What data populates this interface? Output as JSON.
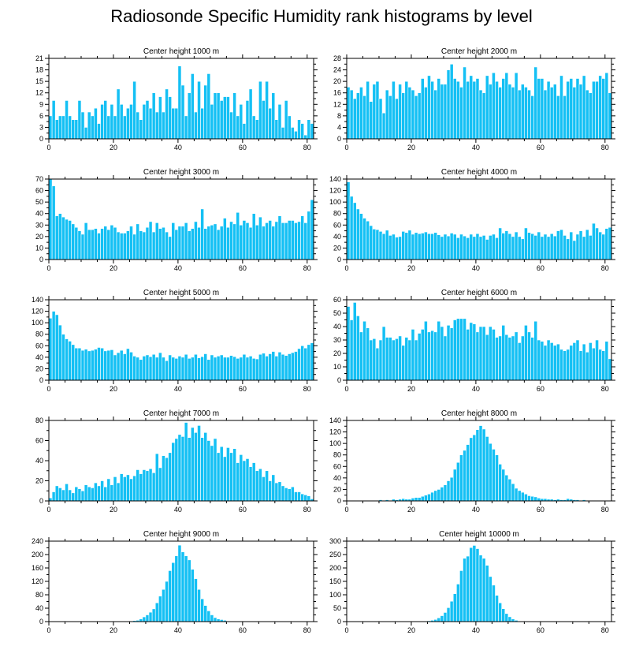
{
  "title": "Radiosonde Specific Humidity rank histograms by level",
  "colors": {
    "bar": "#14c0f4",
    "bar_edge": "#ffffff",
    "axis": "#000000",
    "background": "#ffffff"
  },
  "chart_data": [
    {
      "type": "bar",
      "title": "Center height 1000 m",
      "xlim": [
        0,
        82
      ],
      "ylim": [
        0,
        21
      ],
      "xticks": [
        0,
        20,
        40,
        60,
        80
      ],
      "yticks": [
        0,
        3,
        6,
        9,
        12,
        15,
        18,
        21
      ],
      "values": [
        6,
        10,
        5,
        6,
        6,
        10,
        6,
        5,
        5,
        10,
        7,
        3,
        7,
        6,
        8,
        4,
        9,
        10,
        6,
        9,
        6,
        13,
        9,
        6,
        8,
        9,
        15,
        7,
        5,
        9,
        10,
        8,
        12,
        7,
        11,
        7,
        13,
        11,
        8,
        8,
        19,
        14,
        6,
        12,
        17,
        7,
        15,
        8,
        14,
        17,
        9,
        12,
        12,
        10,
        11,
        11,
        7,
        12,
        6,
        9,
        4,
        10,
        13,
        6,
        5,
        15,
        10,
        15,
        8,
        12,
        5,
        9,
        3,
        10,
        6,
        3,
        2,
        5,
        4,
        1,
        5,
        4
      ]
    },
    {
      "type": "bar",
      "title": "Center height 2000 m",
      "xlim": [
        0,
        82
      ],
      "ylim": [
        0,
        28
      ],
      "xticks": [
        0,
        20,
        40,
        60,
        80
      ],
      "yticks": [
        0,
        4,
        8,
        12,
        16,
        20,
        24,
        28
      ],
      "values": [
        18,
        17,
        14,
        16,
        18,
        15,
        20,
        13,
        19,
        20,
        14,
        9,
        17,
        15,
        20,
        14,
        19,
        16,
        20,
        18,
        17,
        15,
        16,
        21,
        18,
        22,
        20,
        17,
        21,
        19,
        19,
        24,
        26,
        21,
        20,
        18,
        25,
        20,
        22,
        20,
        21,
        17,
        16,
        22,
        19,
        23,
        20,
        18,
        21,
        23,
        19,
        18,
        23,
        17,
        19,
        18,
        17,
        15,
        25,
        21,
        21,
        17,
        20,
        18,
        19,
        15,
        22,
        15,
        20,
        21,
        18,
        21,
        19,
        22,
        17,
        16,
        20,
        20,
        22,
        21,
        23,
        16
      ]
    },
    {
      "type": "bar",
      "title": "Center height 3000 m",
      "xlim": [
        0,
        82
      ],
      "ylim": [
        0,
        70
      ],
      "xticks": [
        0,
        20,
        40,
        60,
        80
      ],
      "yticks": [
        0,
        10,
        20,
        30,
        40,
        50,
        60,
        70
      ],
      "values": [
        70,
        64,
        38,
        40,
        37,
        35,
        34,
        31,
        28,
        25,
        22,
        32,
        26,
        26,
        27,
        23,
        27,
        29,
        26,
        30,
        28,
        24,
        23,
        23,
        25,
        29,
        22,
        31,
        25,
        24,
        28,
        33,
        24,
        32,
        27,
        28,
        24,
        20,
        32,
        26,
        29,
        29,
        32,
        25,
        27,
        33,
        28,
        44,
        27,
        29,
        30,
        31,
        26,
        29,
        36,
        28,
        33,
        31,
        41,
        30,
        34,
        32,
        28,
        40,
        30,
        37,
        29,
        32,
        34,
        29,
        33,
        38,
        32,
        32,
        34,
        34,
        32,
        33,
        38,
        32,
        42,
        52
      ]
    },
    {
      "type": "bar",
      "title": "Center height 4000 m",
      "xlim": [
        0,
        82
      ],
      "ylim": [
        0,
        140
      ],
      "xticks": [
        0,
        20,
        40,
        60,
        80
      ],
      "yticks": [
        0,
        20,
        40,
        60,
        80,
        100,
        120,
        140
      ],
      "values": [
        135,
        110,
        99,
        88,
        80,
        72,
        67,
        59,
        53,
        52,
        49,
        45,
        51,
        42,
        44,
        39,
        40,
        49,
        47,
        51,
        44,
        47,
        45,
        46,
        48,
        45,
        45,
        47,
        43,
        40,
        44,
        41,
        46,
        44,
        38,
        44,
        41,
        38,
        44,
        40,
        45,
        40,
        42,
        35,
        42,
        44,
        38,
        55,
        46,
        50,
        45,
        40,
        48,
        40,
        36,
        55,
        47,
        45,
        42,
        48,
        40,
        44,
        40,
        45,
        41,
        50,
        52,
        42,
        36,
        48,
        33,
        44,
        50,
        40,
        52,
        42,
        63,
        55,
        48,
        44,
        54,
        56
      ]
    },
    {
      "type": "bar",
      "title": "Center height 5000 m",
      "xlim": [
        0,
        82
      ],
      "ylim": [
        0,
        140
      ],
      "xticks": [
        0,
        20,
        40,
        60,
        80
      ],
      "yticks": [
        0,
        20,
        40,
        60,
        80,
        100,
        120,
        140
      ],
      "values": [
        108,
        120,
        114,
        96,
        80,
        72,
        68,
        62,
        56,
        56,
        52,
        54,
        51,
        52,
        54,
        57,
        56,
        51,
        52,
        53,
        44,
        48,
        52,
        46,
        55,
        49,
        42,
        40,
        36,
        42,
        44,
        41,
        45,
        40,
        48,
        40,
        34,
        44,
        40,
        38,
        42,
        40,
        45,
        38,
        40,
        45,
        39,
        41,
        46,
        36,
        44,
        40,
        42,
        44,
        40,
        40,
        43,
        41,
        38,
        40,
        45,
        40,
        42,
        38,
        37,
        45,
        47,
        42,
        46,
        50,
        42,
        49,
        45,
        43,
        46,
        48,
        50,
        55,
        60,
        56,
        62,
        65
      ]
    },
    {
      "type": "bar",
      "title": "Center height 6000 m",
      "xlim": [
        0,
        82
      ],
      "ylim": [
        0,
        60
      ],
      "xticks": [
        0,
        20,
        40,
        60,
        80
      ],
      "yticks": [
        0,
        10,
        20,
        30,
        40,
        50,
        60
      ],
      "values": [
        55,
        45,
        58,
        48,
        36,
        44,
        39,
        30,
        31,
        24,
        30,
        40,
        32,
        32,
        30,
        31,
        33,
        26,
        32,
        30,
        38,
        30,
        35,
        38,
        44,
        36,
        37,
        36,
        44,
        40,
        33,
        41,
        39,
        45,
        46,
        46,
        46,
        38,
        43,
        42,
        36,
        40,
        40,
        34,
        40,
        38,
        32,
        33,
        41,
        34,
        32,
        33,
        36,
        28,
        33,
        41,
        36,
        32,
        44,
        30,
        29,
        26,
        30,
        28,
        26,
        27,
        23,
        22,
        23,
        26,
        28,
        30,
        22,
        27,
        21,
        28,
        24,
        30,
        23,
        22,
        29,
        16
      ]
    },
    {
      "type": "bar",
      "title": "Center height 7000 m",
      "xlim": [
        0,
        82
      ],
      "ylim": [
        0,
        80
      ],
      "xticks": [
        0,
        20,
        40,
        60,
        80
      ],
      "yticks": [
        0,
        20,
        40,
        60,
        80
      ],
      "values": [
        3,
        9,
        15,
        13,
        11,
        17,
        11,
        8,
        14,
        12,
        10,
        16,
        14,
        13,
        18,
        15,
        20,
        14,
        22,
        16,
        24,
        18,
        27,
        24,
        26,
        22,
        25,
        31,
        27,
        31,
        30,
        32,
        28,
        47,
        33,
        45,
        43,
        48,
        58,
        62,
        66,
        64,
        78,
        63,
        73,
        68,
        75,
        63,
        68,
        60,
        55,
        62,
        48,
        54,
        44,
        53,
        48,
        52,
        38,
        46,
        40,
        42,
        34,
        38,
        30,
        32,
        24,
        30,
        20,
        26,
        18,
        19,
        15,
        13,
        12,
        14,
        9,
        9,
        7,
        6,
        5,
        2
      ]
    },
    {
      "type": "bar",
      "title": "Center height 8000 m",
      "xlim": [
        0,
        82
      ],
      "ylim": [
        0,
        140
      ],
      "xticks": [
        0,
        20,
        40,
        60,
        80
      ],
      "yticks": [
        0,
        20,
        40,
        60,
        80,
        100,
        120,
        140
      ],
      "values": [
        0,
        0,
        1,
        0,
        0,
        1,
        0,
        1,
        1,
        0,
        2,
        1,
        2,
        1,
        3,
        2,
        3,
        4,
        3,
        3,
        5,
        6,
        6,
        8,
        10,
        12,
        15,
        18,
        20,
        24,
        28,
        35,
        41,
        55,
        67,
        80,
        88,
        98,
        110,
        115,
        124,
        131,
        125,
        112,
        100,
        90,
        80,
        64,
        55,
        45,
        38,
        30,
        22,
        18,
        15,
        12,
        9,
        8,
        7,
        5,
        4,
        4,
        3,
        3,
        2,
        3,
        2,
        2,
        4,
        3,
        2,
        2,
        1,
        2,
        1,
        1,
        1,
        0,
        1,
        0,
        0,
        0
      ]
    },
    {
      "type": "bar",
      "title": "Center height 9000 m",
      "xlim": [
        0,
        82
      ],
      "ylim": [
        0,
        240
      ],
      "xticks": [
        0,
        20,
        40,
        60,
        80
      ],
      "yticks": [
        0,
        40,
        80,
        120,
        160,
        200,
        240
      ],
      "values": [
        0,
        0,
        0,
        0,
        0,
        0,
        0,
        0,
        0,
        0,
        0,
        0,
        0,
        0,
        0,
        0,
        0,
        0,
        0,
        0,
        0,
        0,
        0,
        1,
        1,
        2,
        3,
        4,
        8,
        14,
        20,
        28,
        38,
        56,
        76,
        96,
        120,
        152,
        176,
        196,
        228,
        208,
        196,
        184,
        156,
        128,
        96,
        68,
        48,
        32,
        20,
        12,
        8,
        6,
        4,
        2,
        1,
        1,
        0,
        0,
        0,
        0,
        0,
        0,
        0,
        0,
        0,
        0,
        0,
        0,
        0,
        0,
        0,
        0,
        0,
        0,
        0,
        0,
        0,
        0,
        0,
        0
      ]
    },
    {
      "type": "bar",
      "title": "Center height 10000 m",
      "xlim": [
        0,
        82
      ],
      "ylim": [
        0,
        300
      ],
      "xticks": [
        0,
        20,
        40,
        60,
        80
      ],
      "yticks": [
        0,
        50,
        100,
        150,
        200,
        250,
        300
      ],
      "values": [
        0,
        0,
        0,
        0,
        0,
        0,
        0,
        0,
        0,
        0,
        0,
        0,
        0,
        0,
        0,
        0,
        0,
        0,
        0,
        0,
        0,
        0,
        1,
        1,
        2,
        3,
        5,
        8,
        14,
        22,
        34,
        52,
        76,
        104,
        140,
        190,
        236,
        244,
        276,
        284,
        272,
        248,
        236,
        210,
        168,
        136,
        98,
        70,
        48,
        30,
        18,
        10,
        5,
        2,
        1,
        0,
        0,
        0,
        0,
        0,
        0,
        0,
        0,
        0,
        0,
        0,
        0,
        0,
        0,
        0,
        0,
        0,
        0,
        0,
        0,
        0,
        0,
        0,
        0,
        0,
        0,
        0
      ]
    }
  ]
}
